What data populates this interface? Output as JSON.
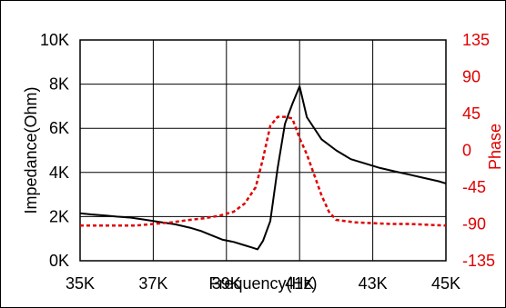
{
  "chart_data": {
    "type": "line",
    "title": "",
    "xlabel": "Frequency(Hz)",
    "ylabel": "Impedance(Ohm)",
    "y2label": "Phase",
    "xlim": [
      35000,
      45000
    ],
    "ylim": [
      0,
      10000
    ],
    "y2lim": [
      -135,
      135
    ],
    "grid": true,
    "x_tick_labels": [
      "35K",
      "37K",
      "39K",
      "41K",
      "43K",
      "45K"
    ],
    "y_tick_labels": [
      "0K",
      "2K",
      "4K",
      "6K",
      "8K",
      "10K"
    ],
    "y2_tick_labels": [
      "-135",
      "-90",
      "-45",
      "0",
      "45",
      "90",
      "135"
    ],
    "colors": {
      "impedance": "#000000",
      "phase": "#e00000"
    },
    "series": [
      {
        "axis": "left",
        "style": "solid",
        "x": [
          35000,
          35300,
          35700,
          36000,
          36400,
          36800,
          37200,
          37600,
          38000,
          38300,
          38600,
          38900,
          39200,
          39500,
          39700,
          39850,
          40000,
          40200,
          40400,
          40600,
          40800,
          41000,
          41200,
          41600,
          42000,
          42400,
          42800,
          43200,
          43600,
          44000,
          44400,
          44800,
          45000
        ],
        "values": [
          2150,
          2100,
          2050,
          2000,
          1950,
          1850,
          1750,
          1650,
          1500,
          1350,
          1150,
          950,
          850,
          700,
          600,
          520,
          900,
          1800,
          4200,
          6200,
          7100,
          7900,
          6500,
          5500,
          5000,
          4600,
          4400,
          4200,
          4050,
          3900,
          3750,
          3600,
          3500
        ]
      },
      {
        "axis": "right",
        "style": "dashed",
        "x": [
          35000,
          35500,
          36000,
          36500,
          37000,
          37500,
          38000,
          38400,
          38800,
          39200,
          39500,
          39800,
          40000,
          40200,
          40400,
          40600,
          40800,
          41000,
          41200,
          41400,
          41600,
          41800,
          42000,
          42500,
          43000,
          43500,
          44000,
          44500,
          45000
        ],
        "values": [
          -92,
          -92,
          -92,
          -92,
          -90,
          -88,
          -85,
          -83,
          -80,
          -75,
          -65,
          -45,
          -10,
          30,
          41,
          41,
          39,
          15,
          -5,
          -30,
          -55,
          -75,
          -85,
          -88,
          -89,
          -90,
          -90,
          -91,
          -92
        ]
      }
    ]
  }
}
